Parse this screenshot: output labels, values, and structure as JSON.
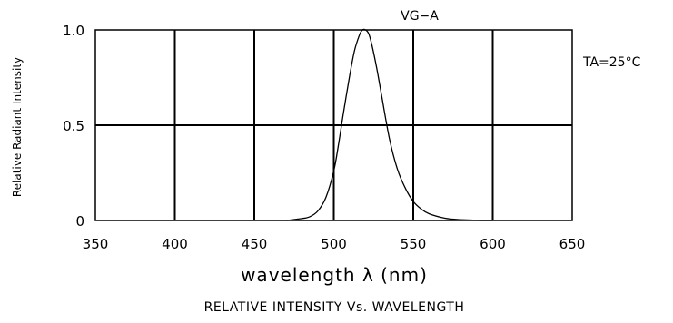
{
  "chart_data": {
    "type": "line",
    "title": "VG−A",
    "subtitle": "RELATIVE INTENSITY Vs. WAVELENGTH",
    "xlabel": "wavelength λ (nm)",
    "ylabel": "Relative Radiant Intensity",
    "annotation": "TA=25°C",
    "xlim": [
      350,
      650
    ],
    "ylim": [
      0,
      1.0
    ],
    "x_ticks": [
      350,
      400,
      450,
      500,
      550,
      600,
      650
    ],
    "y_ticks": [
      {
        "value": 0,
        "label": "0"
      },
      {
        "value": 0.5,
        "label": "0.5"
      },
      {
        "value": 1.0,
        "label": "1.0"
      }
    ],
    "grid": true,
    "series": [
      {
        "x": [
          470,
          480,
          485,
          490,
          495,
          500,
          503,
          506,
          510,
          513,
          516,
          518,
          520,
          522,
          524,
          527,
          530,
          535,
          540,
          545,
          550,
          555,
          560,
          570,
          580,
          590,
          600
        ],
        "y": [
          0.0,
          0.01,
          0.02,
          0.05,
          0.12,
          0.26,
          0.4,
          0.56,
          0.76,
          0.89,
          0.97,
          1.0,
          1.0,
          0.98,
          0.92,
          0.8,
          0.66,
          0.43,
          0.27,
          0.17,
          0.1,
          0.06,
          0.035,
          0.012,
          0.004,
          0.001,
          0.0
        ],
        "color": "#000000"
      }
    ]
  }
}
